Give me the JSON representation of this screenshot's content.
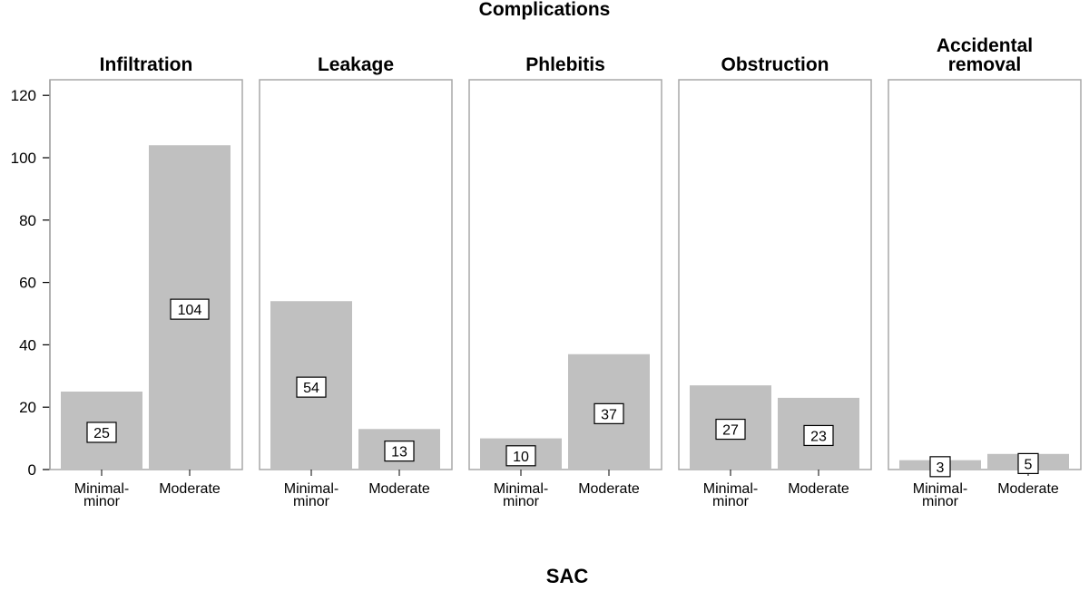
{
  "chart_data": {
    "type": "bar",
    "title": "Complications",
    "xlabel": "SAC",
    "ylabel": "",
    "ylim": [
      0,
      125
    ],
    "yticks": [
      0,
      20,
      40,
      60,
      80,
      100,
      120
    ],
    "categories": [
      "Minimal-minor",
      "Moderate"
    ],
    "category_lines": [
      [
        "Minimal-",
        "minor"
      ],
      [
        "Moderate"
      ]
    ],
    "bar_color": "#c0c0c0",
    "frame_color": "#a8a8a8",
    "panels": [
      {
        "title_lines": [
          "Infiltration"
        ],
        "values": [
          25,
          104
        ]
      },
      {
        "title_lines": [
          "Leakage"
        ],
        "values": [
          54,
          13
        ]
      },
      {
        "title_lines": [
          "Phlebitis"
        ],
        "values": [
          10,
          37
        ]
      },
      {
        "title_lines": [
          "Obstruction"
        ],
        "values": [
          27,
          23
        ]
      },
      {
        "title_lines": [
          "Accidental",
          "removal"
        ],
        "values": [
          3,
          5
        ]
      }
    ]
  }
}
